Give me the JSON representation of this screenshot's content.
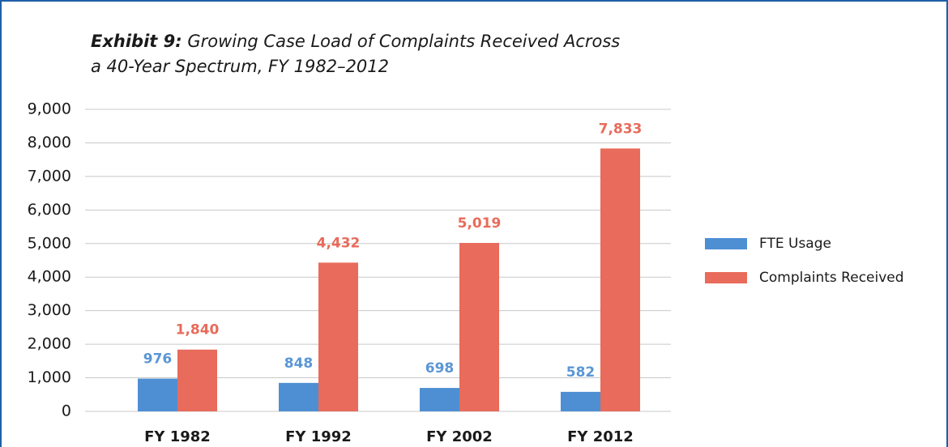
{
  "chart_data": {
    "type": "bar",
    "title_lead": "Exhibit 9:",
    "title": [
      "Growing Case Load of Complaints Received Across",
      "a 40-Year Spectrum, FY 1982–2012"
    ],
    "categories": [
      "FY 1982",
      "FY 1992",
      "FY 2002",
      "FY 2012"
    ],
    "series": [
      {
        "name": "FTE Usage",
        "color": "#4e8fd3",
        "label_color": "#5a96d6",
        "values": [
          976,
          848,
          698,
          582
        ],
        "value_labels": [
          "976",
          "848",
          "698",
          "582"
        ]
      },
      {
        "name": "Complaints Received",
        "color": "#e86b5b",
        "label_color": "#e86b5b",
        "values": [
          1840,
          4432,
          5019,
          7833
        ],
        "value_labels": [
          "1,840",
          "4,432",
          "5,019",
          "7,833"
        ]
      }
    ],
    "ylim": [
      0,
      9000
    ],
    "yticks": [
      0,
      {
        "value": 1000,
        "label": "1,000"
      },
      {
        "value": 2000,
        "label": "2,000"
      },
      {
        "value": 3000,
        "label": "3,000"
      },
      {
        "value": 4000,
        "label": "4,000"
      },
      {
        "value": 5000,
        "label": "5,000"
      },
      {
        "value": 6000,
        "label": "6,000"
      },
      {
        "value": 7000,
        "label": "7,000"
      },
      {
        "value": 8000,
        "label": "8,000"
      },
      {
        "value": 9000,
        "label": "9,000"
      }
    ],
    "grid": true,
    "legend": "right"
  }
}
